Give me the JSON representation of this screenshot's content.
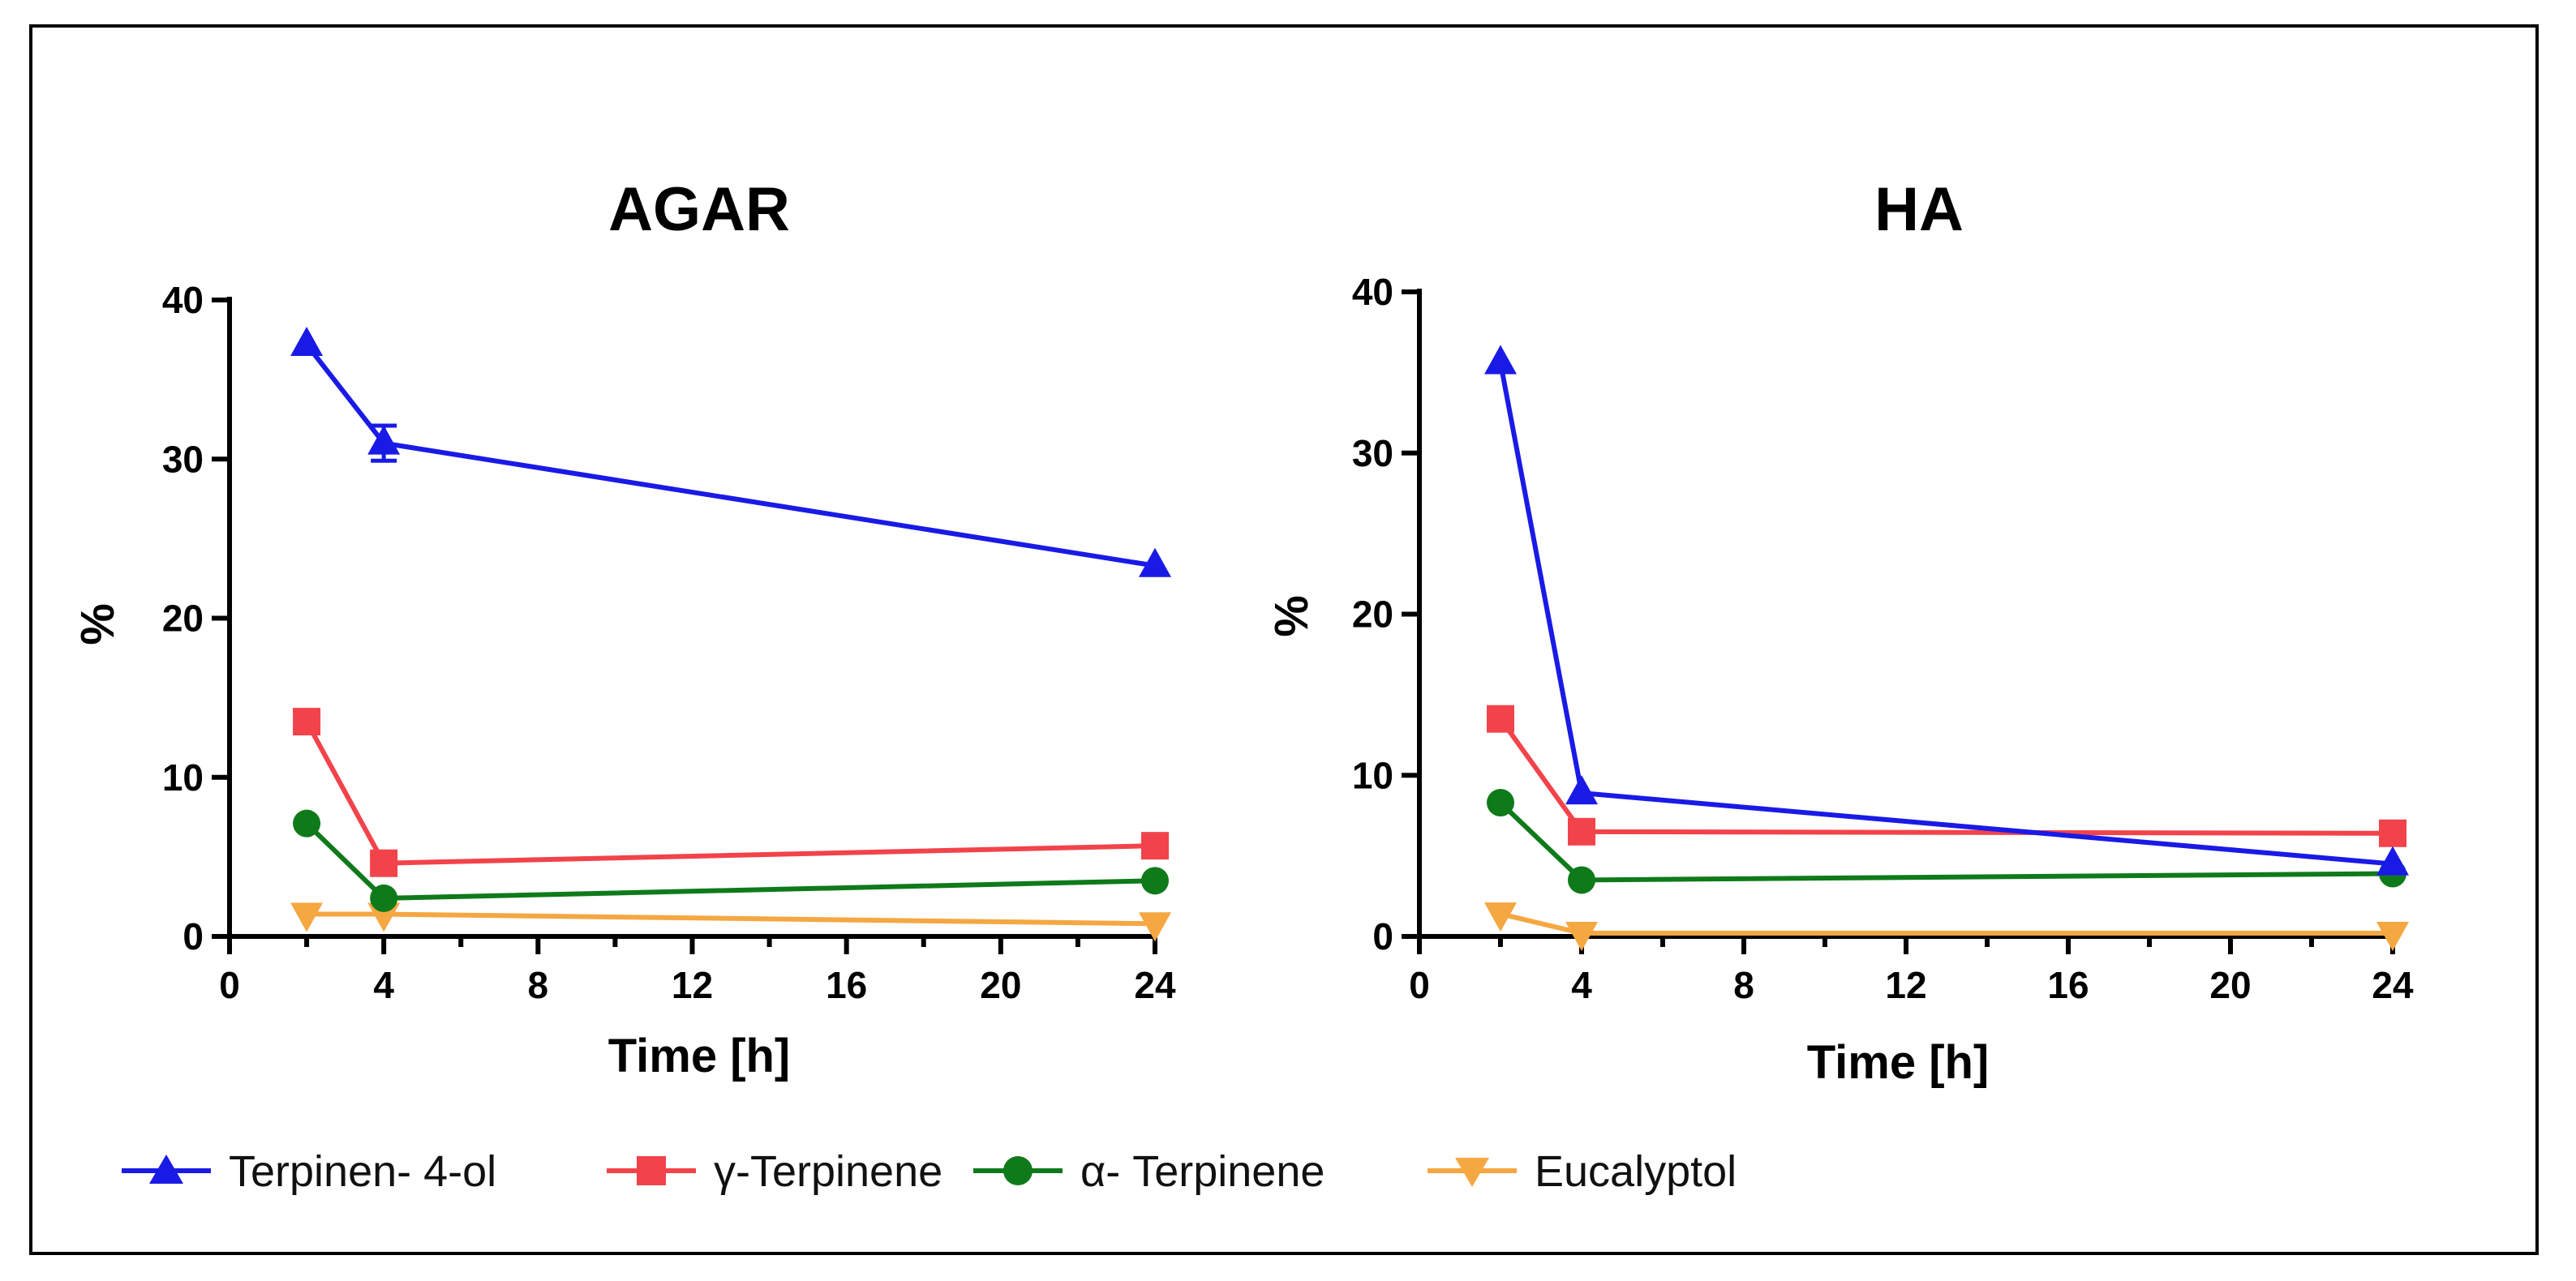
{
  "chart_data": [
    {
      "type": "line",
      "title": "AGAR",
      "xlabel": "Time [h]",
      "ylabel": "%",
      "xlim": [
        0,
        24
      ],
      "ylim": [
        0,
        40
      ],
      "xticks": [
        "0",
        "4",
        "8",
        "12",
        "16",
        "20",
        "24"
      ],
      "yticks": [
        "0",
        "10",
        "20",
        "30",
        "40"
      ],
      "x": [
        2,
        4,
        24
      ],
      "series": [
        {
          "name": "Terpinen- 4-ol",
          "values": [
            37.2,
            31.0,
            23.3
          ],
          "error": [
            0,
            1.1,
            0
          ]
        },
        {
          "name": "γ-Terpinene",
          "values": [
            13.5,
            4.6,
            5.7
          ],
          "error": [
            0,
            0,
            0
          ]
        },
        {
          "name": "α- Terpinene",
          "values": [
            7.1,
            2.4,
            3.5
          ],
          "error": [
            0,
            0,
            0
          ]
        },
        {
          "name": "Eucalyptol",
          "values": [
            1.4,
            1.4,
            0.8
          ],
          "error": [
            0,
            0,
            0
          ]
        }
      ]
    },
    {
      "type": "line",
      "title": "HA",
      "xlabel": "Time [h]",
      "ylabel": "%",
      "xlim": [
        0,
        24
      ],
      "ylim": [
        0,
        40
      ],
      "xticks": [
        "0",
        "4",
        "8",
        "12",
        "16",
        "20",
        "24"
      ],
      "yticks": [
        "0",
        "10",
        "20",
        "30",
        "40"
      ],
      "x": [
        2,
        4,
        24
      ],
      "series": [
        {
          "name": "Terpinen- 4-ol",
          "values": [
            35.6,
            8.9,
            4.5
          ],
          "error": [
            0,
            0,
            0
          ]
        },
        {
          "name": "γ-Terpinene",
          "values": [
            13.5,
            6.5,
            6.4
          ],
          "error": [
            0,
            0,
            0
          ]
        },
        {
          "name": "α- Terpinene",
          "values": [
            8.3,
            3.5,
            3.9
          ],
          "error": [
            0,
            0,
            0
          ]
        },
        {
          "name": "Eucalyptol",
          "values": [
            1.4,
            0.2,
            0.2
          ],
          "error": [
            0,
            0,
            0
          ]
        }
      ]
    }
  ],
  "legend": [
    {
      "name": "Terpinen- 4-ol",
      "color": "#1a1ae6",
      "marker": "triangle-up"
    },
    {
      "name": "γ-Terpinene",
      "color": "#f2434b",
      "marker": "square"
    },
    {
      "name": "α- Terpinene",
      "color": "#0f7a1a",
      "marker": "circle"
    },
    {
      "name": "Eucalyptol",
      "color": "#f5a742",
      "marker": "triangle-down"
    }
  ]
}
